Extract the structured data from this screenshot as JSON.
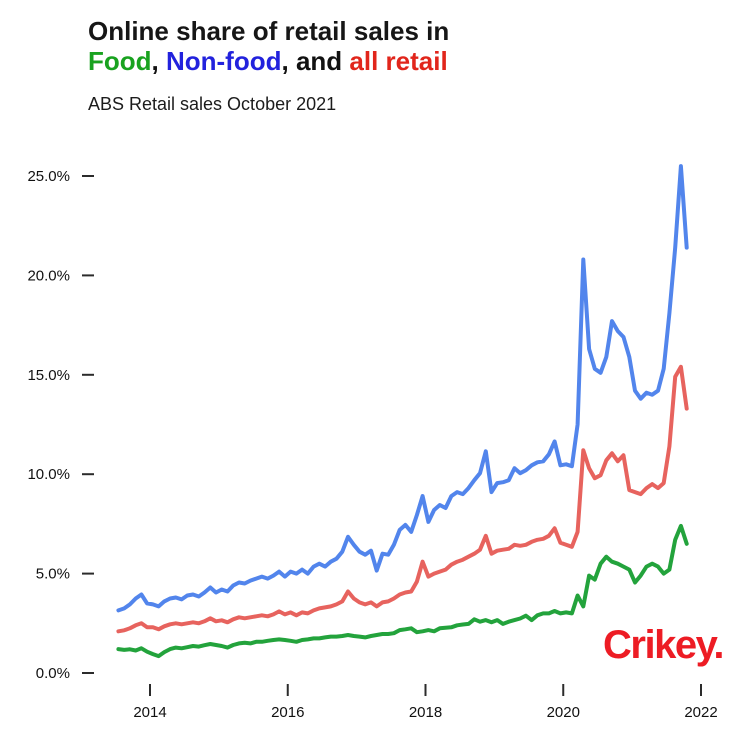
{
  "title": {
    "line1": "Online share of retail sales in",
    "segments": [
      {
        "text": "Food",
        "color": "#19A21F"
      },
      {
        "text": ",  ",
        "color": "#111111"
      },
      {
        "text": "Non-food",
        "color": "#2222DD"
      },
      {
        "text": ", and ",
        "color": "#111111"
      },
      {
        "text": "all retail",
        "color": "#E1251B"
      }
    ]
  },
  "subtitle": "ABS Retail sales October 2021",
  "branding": {
    "logo_text": "Crikey.",
    "color": "#ED1C24"
  },
  "chart_data": {
    "type": "line",
    "title": "Online share of retail sales in Food, Non-food, and all retail",
    "subtitle": "ABS Retail sales October 2021",
    "unit": "percent (online share of retail sales)",
    "frequency": "monthly",
    "x_start": "2013-07",
    "x_end": "2021-10",
    "xlim_years": [
      2013.4,
      2022.15
    ],
    "ylim": [
      0,
      26.5
    ],
    "grid": false,
    "legend_position": "in-title",
    "y_ticks": [
      {
        "value": 0,
        "label": "0.0%"
      },
      {
        "value": 5,
        "label": "5.0%"
      },
      {
        "value": 10,
        "label": "10.0%"
      },
      {
        "value": 15,
        "label": "15.0%"
      },
      {
        "value": 20,
        "label": "20.0%"
      },
      {
        "value": 25,
        "label": "25.0%"
      }
    ],
    "x_ticks": [
      {
        "year": 2014,
        "label": "2014"
      },
      {
        "year": 2016,
        "label": "2016"
      },
      {
        "year": 2018,
        "label": "2018"
      },
      {
        "year": 2020,
        "label": "2020"
      },
      {
        "year": 2022,
        "label": "2022"
      }
    ],
    "series": [
      {
        "name": "Food",
        "color": "#23A33C",
        "values": [
          1.2,
          1.16,
          1.19,
          1.13,
          1.24,
          1.07,
          0.95,
          0.85,
          1.05,
          1.2,
          1.28,
          1.24,
          1.3,
          1.36,
          1.33,
          1.4,
          1.46,
          1.41,
          1.36,
          1.28,
          1.41,
          1.49,
          1.52,
          1.49,
          1.57,
          1.57,
          1.62,
          1.66,
          1.69,
          1.66,
          1.62,
          1.57,
          1.66,
          1.69,
          1.74,
          1.74,
          1.79,
          1.83,
          1.83,
          1.86,
          1.91,
          1.86,
          1.83,
          1.79,
          1.86,
          1.91,
          1.96,
          1.96,
          2.0,
          2.16,
          2.2,
          2.25,
          2.05,
          2.1,
          2.16,
          2.1,
          2.25,
          2.28,
          2.3,
          2.4,
          2.44,
          2.47,
          2.7,
          2.58,
          2.66,
          2.55,
          2.66,
          2.47,
          2.58,
          2.66,
          2.74,
          2.88,
          2.66,
          2.9,
          3.0,
          3.0,
          3.12,
          3.0,
          3.05,
          3.0,
          3.9,
          3.35,
          4.9,
          4.7,
          5.5,
          5.85,
          5.6,
          5.5,
          5.35,
          5.2,
          4.55,
          4.9,
          5.35,
          5.5,
          5.35,
          5.0,
          5.2,
          6.7,
          7.4,
          6.5
        ]
      },
      {
        "name": "All retail",
        "color": "#E7635E",
        "values": [
          2.1,
          2.15,
          2.25,
          2.4,
          2.5,
          2.3,
          2.3,
          2.2,
          2.35,
          2.45,
          2.5,
          2.45,
          2.5,
          2.55,
          2.5,
          2.6,
          2.75,
          2.6,
          2.65,
          2.55,
          2.7,
          2.8,
          2.75,
          2.8,
          2.85,
          2.9,
          2.85,
          2.95,
          3.1,
          2.95,
          3.05,
          2.9,
          3.05,
          3.0,
          3.15,
          3.25,
          3.3,
          3.35,
          3.45,
          3.6,
          4.1,
          3.75,
          3.55,
          3.45,
          3.55,
          3.35,
          3.55,
          3.6,
          3.75,
          3.95,
          4.05,
          4.1,
          4.6,
          5.6,
          4.85,
          5.0,
          5.1,
          5.2,
          5.45,
          5.6,
          5.7,
          5.85,
          6.0,
          6.2,
          6.9,
          6.0,
          6.15,
          6.2,
          6.25,
          6.45,
          6.4,
          6.45,
          6.6,
          6.7,
          6.75,
          6.9,
          7.28,
          6.55,
          6.45,
          6.35,
          7.1,
          11.2,
          10.3,
          9.8,
          9.95,
          10.7,
          11.05,
          10.65,
          10.95,
          9.2,
          9.1,
          9.0,
          9.3,
          9.5,
          9.3,
          9.55,
          11.4,
          14.9,
          15.4,
          13.3
        ]
      },
      {
        "name": "Non-food",
        "color": "#5285EC",
        "values": [
          3.15,
          3.25,
          3.45,
          3.75,
          3.95,
          3.5,
          3.45,
          3.35,
          3.6,
          3.75,
          3.8,
          3.7,
          3.9,
          3.95,
          3.85,
          4.05,
          4.3,
          4.05,
          4.2,
          4.1,
          4.4,
          4.55,
          4.5,
          4.65,
          4.75,
          4.85,
          4.75,
          4.9,
          5.1,
          4.85,
          5.1,
          5.0,
          5.2,
          5.0,
          5.35,
          5.5,
          5.35,
          5.6,
          5.75,
          6.1,
          6.85,
          6.45,
          6.1,
          5.95,
          6.15,
          5.15,
          6.0,
          5.95,
          6.45,
          7.2,
          7.45,
          7.1,
          7.95,
          8.9,
          7.6,
          8.2,
          8.45,
          8.3,
          8.9,
          9.1,
          9.0,
          9.3,
          9.7,
          10.05,
          11.15,
          9.1,
          9.55,
          9.6,
          9.7,
          10.3,
          10.05,
          10.2,
          10.45,
          10.6,
          10.65,
          11.0,
          11.65,
          10.45,
          10.5,
          10.4,
          12.5,
          20.8,
          16.3,
          15.3,
          15.1,
          15.9,
          17.7,
          17.2,
          16.9,
          15.9,
          14.2,
          13.8,
          14.1,
          14.0,
          14.2,
          15.3,
          18.1,
          21.4,
          25.5,
          21.4
        ]
      }
    ]
  }
}
